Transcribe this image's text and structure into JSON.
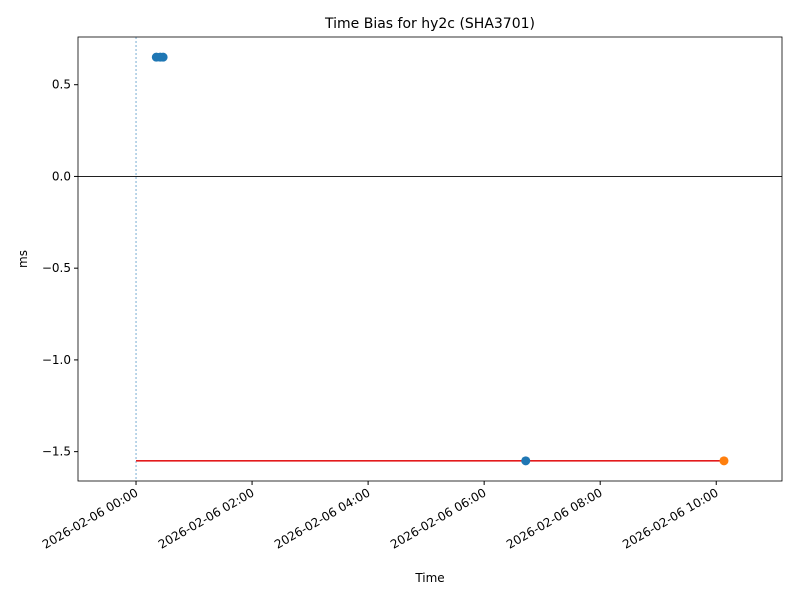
{
  "chart_data": {
    "type": "scatter",
    "title": "Time Bias for hy2c (SHA3701)",
    "x_label": "Time",
    "y_label": "ms",
    "series": [
      {
        "color": "#1f77b4",
        "x": [
          "2026-02-06 00:21",
          "2026-02-06 00:25",
          "2026-02-06 00:28",
          "2026-02-06 06:43"
        ],
        "values": [
          0.65,
          0.65,
          0.65,
          -1.55
        ]
      },
      {
        "color": "#ff7f0e",
        "x": [
          "2026-02-06 10:08"
        ],
        "values": [
          -1.55
        ]
      }
    ],
    "lines": [
      {
        "color": "#e31a1c",
        "x": [
          "2026-02-06 00:00",
          "2026-02-06 10:08"
        ],
        "values": [
          -1.55,
          -1.55
        ]
      }
    ],
    "hline": 0,
    "vline": "2026-02-06 00:00",
    "xlim": [
      "2026-02-05 23:00",
      "2026-02-06 11:08"
    ],
    "xticks": [
      "2026-02-06 00:00",
      "2026-02-06 02:00",
      "2026-02-06 04:00",
      "2026-02-06 06:00",
      "2026-02-06 08:00",
      "2026-02-06 10:00"
    ],
    "ylim": [
      -1.66,
      0.76
    ],
    "yticks": [
      {
        "value": -1.5,
        "label": "−1.5"
      },
      {
        "value": -1.0,
        "label": "−1.0"
      },
      {
        "value": -0.5,
        "label": "−0.5"
      },
      {
        "value": 0.0,
        "label": "0.0"
      },
      0.5
    ]
  }
}
